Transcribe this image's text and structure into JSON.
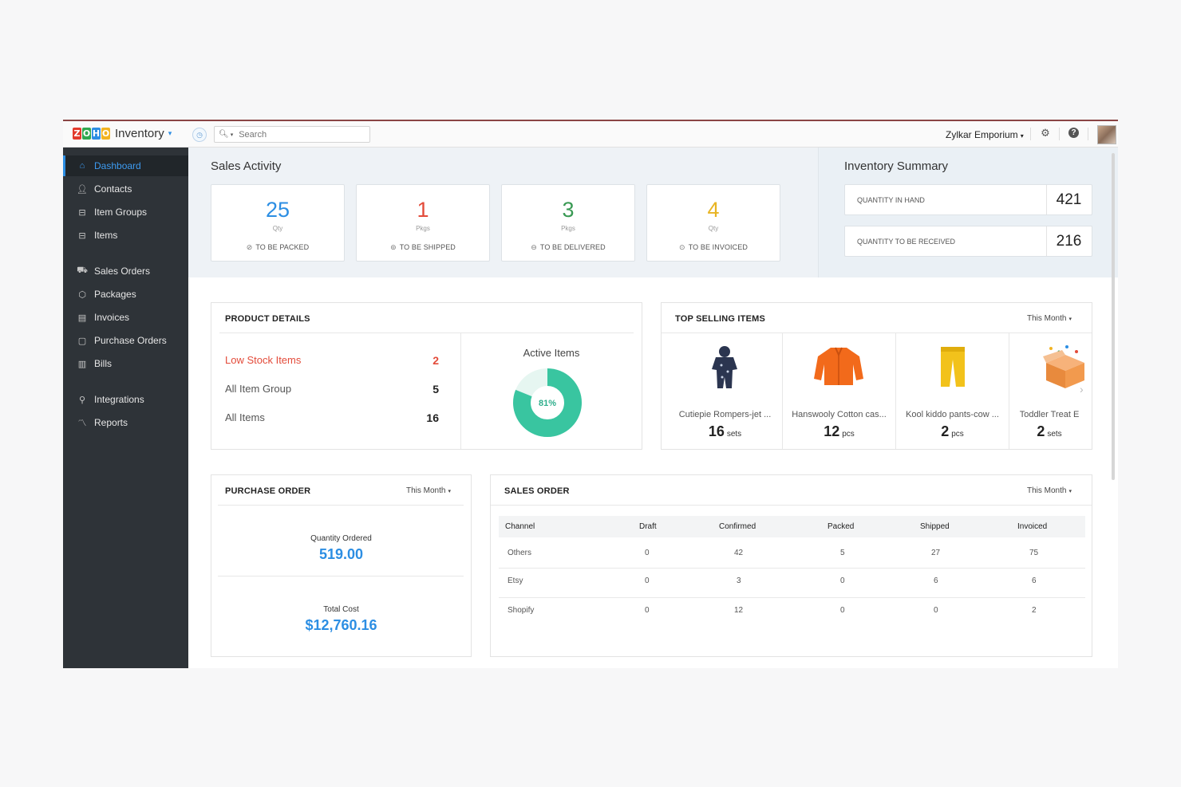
{
  "brand": {
    "logo_letters": [
      "Z",
      "O",
      "H",
      "O"
    ],
    "app_name": "Inventory"
  },
  "search": {
    "placeholder": "Search"
  },
  "topbar": {
    "org_name": "Zylkar Emporium"
  },
  "sidebar": {
    "items": [
      {
        "label": "Dashboard",
        "icon": "home-icon",
        "active": true
      },
      {
        "label": "Contacts",
        "icon": "user-icon"
      },
      {
        "label": "Item Groups",
        "icon": "basket-icon"
      },
      {
        "label": "Items",
        "icon": "basket-icon"
      },
      {
        "label": "Sales Orders",
        "icon": "cart-icon"
      },
      {
        "label": "Packages",
        "icon": "box-icon"
      },
      {
        "label": "Invoices",
        "icon": "document-icon"
      },
      {
        "label": "Purchase Orders",
        "icon": "bag-icon"
      },
      {
        "label": "Bills",
        "icon": "receipt-icon"
      },
      {
        "label": "Integrations",
        "icon": "plug-icon"
      },
      {
        "label": "Reports",
        "icon": "chart-icon"
      }
    ]
  },
  "sales_activity": {
    "title": "Sales Activity",
    "cards": [
      {
        "value": "25",
        "unit": "Qty",
        "label": "TO BE PACKED",
        "color": "#2c8ee3"
      },
      {
        "value": "1",
        "unit": "Pkgs",
        "label": "TO BE SHIPPED",
        "color": "#e34b3a"
      },
      {
        "value": "3",
        "unit": "Pkgs",
        "label": "TO BE DELIVERED",
        "color": "#3a9a54"
      },
      {
        "value": "4",
        "unit": "Qty",
        "label": "TO BE INVOICED",
        "color": "#e8b423"
      }
    ]
  },
  "inventory_summary": {
    "title": "Inventory Summary",
    "rows": [
      {
        "label": "QUANTITY IN HAND",
        "value": "421"
      },
      {
        "label": "QUANTITY TO BE RECEIVED",
        "value": "216"
      }
    ]
  },
  "product_details": {
    "title": "PRODUCT DETAILS",
    "rows": [
      {
        "label": "Low Stock Items",
        "value": "2"
      },
      {
        "label": "All Item Group",
        "value": "5"
      },
      {
        "label": "All Items",
        "value": "16"
      }
    ],
    "active_items_title": "Active Items",
    "active_percent_label": "81%",
    "active_fraction": 0.81,
    "donut_color": "#39c5a0",
    "donut_track_color": "#e6f6f1"
  },
  "top_selling": {
    "title": "TOP SELLING ITEMS",
    "filter": "This Month",
    "items": [
      {
        "name": "Cutiepie Rompers-jet ...",
        "qty": "16",
        "unit": "sets",
        "icon": "romper-icon"
      },
      {
        "name": "Hanswooly Cotton cas...",
        "qty": "12",
        "unit": "pcs",
        "icon": "cardigan-icon"
      },
      {
        "name": "Kool kiddo pants-cow ...",
        "qty": "2",
        "unit": "pcs",
        "icon": "pants-icon"
      },
      {
        "name": "Toddler Treat E",
        "qty": "2",
        "unit": "sets",
        "icon": "gift-box-icon"
      }
    ]
  },
  "purchase_order": {
    "title": "PURCHASE ORDER",
    "filter": "This Month",
    "qty_label": "Quantity Ordered",
    "qty_value": "519.00",
    "cost_label": "Total Cost",
    "cost_value": "$12,760.16"
  },
  "sales_order": {
    "title": "SALES ORDER",
    "filter": "This Month",
    "columns": [
      "Channel",
      "Draft",
      "Confirmed",
      "Packed",
      "Shipped",
      "Invoiced"
    ],
    "rows": [
      [
        "Others",
        "0",
        "42",
        "5",
        "27",
        "75"
      ],
      [
        "Etsy",
        "0",
        "3",
        "0",
        "6",
        "6"
      ],
      [
        "Shopify",
        "0",
        "12",
        "0",
        "0",
        "2"
      ]
    ]
  }
}
